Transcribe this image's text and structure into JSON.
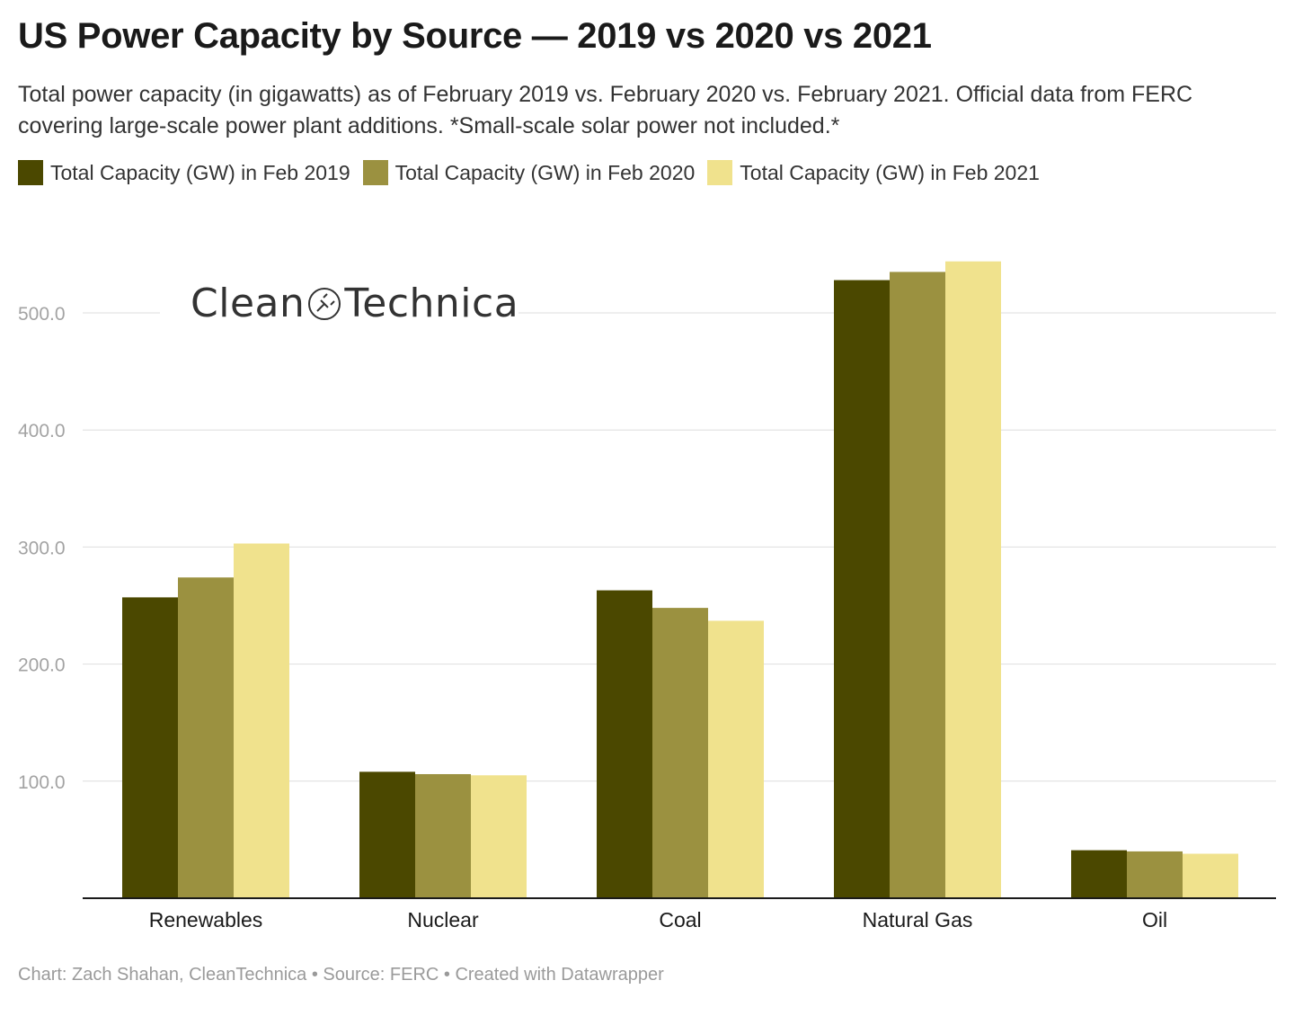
{
  "header": {
    "title": "US Power Capacity by Source — 2019 vs 2020 vs 2021",
    "subtitle": "Total power capacity (in gigawatts) as of February 2019 vs. February 2020 vs. February 2021. Official data from FERC covering large-scale power plant additions. *Small-scale solar power not included.*"
  },
  "logo": {
    "text_left": "Clean",
    "text_right": "Technica",
    "icon": "plug-icon"
  },
  "footer": {
    "credit": "Chart: Zach Shahan, CleanTechnica • Source: FERC • Created with Datawrapper"
  },
  "chart_data": {
    "type": "bar",
    "categories": [
      "Renewables",
      "Nuclear",
      "Coal",
      "Natural Gas",
      "Oil"
    ],
    "series": [
      {
        "name": "Total Capacity (GW) in Feb 2019",
        "color": "#4b4800",
        "values": [
          257,
          108,
          263,
          528,
          41
        ]
      },
      {
        "name": "Total Capacity (GW) in Feb 2020",
        "color": "#9b9140",
        "values": [
          274,
          106,
          248,
          535,
          40
        ]
      },
      {
        "name": "Total Capacity (GW) in Feb 2021",
        "color": "#f0e28d",
        "values": [
          303,
          105,
          237,
          544,
          38
        ]
      }
    ],
    "yticks": [
      "100.0",
      "200.0",
      "300.0",
      "400.0",
      "500.0"
    ],
    "ytick_values": [
      100,
      200,
      300,
      400,
      500
    ],
    "ylim": [
      0,
      560
    ],
    "grid": true,
    "legend": "top-left"
  }
}
